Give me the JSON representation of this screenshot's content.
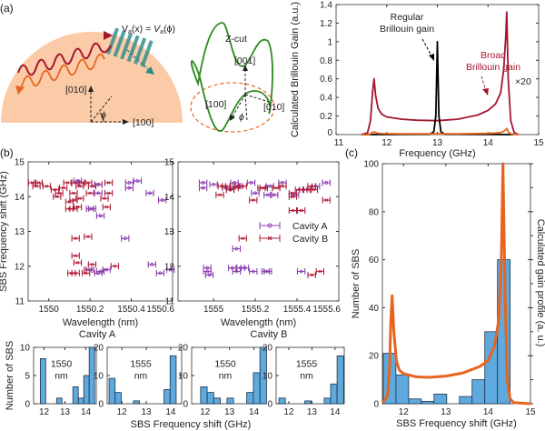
{
  "panel_labels": {
    "a": "(a)",
    "b": "(b)",
    "c": "(c)"
  },
  "diagram_halfdisk": {
    "equation_lhs_v": "V",
    "equation_lhs_sub": "a",
    "equation_lhs_arg": "(x) = ",
    "equation_rhs_v": "V",
    "equation_rhs_sub": "a",
    "equation_rhs_arg": "(ϕ)",
    "axis_y": "[010]",
    "axis_x": "[100]",
    "angle": "ϕ",
    "colors": {
      "disk": "#fbcba8",
      "pump_wave": "#a3162f",
      "stokes_wave": "#e8641e",
      "acoustic": "#2a8a8a"
    }
  },
  "diagram_zcut": {
    "title": "Z-cut",
    "axis_z": "[001]",
    "axis_x": "[100]",
    "axis_y": "[010]",
    "angle": "ϕ",
    "colors": {
      "surface": "#2e8b1e",
      "ellipse": "#e8641e"
    }
  },
  "chart_data": [
    {
      "id": "a-gain",
      "type": "line",
      "xlabel": "Frequency (GHz)",
      "ylabel": "Calculated Brillouin Gain (a.u.)",
      "xlim": [
        11,
        15
      ],
      "ylim": [
        0,
        1.4
      ],
      "xticks": [
        "11",
        "12",
        "13",
        "14",
        "15"
      ],
      "yticks": [
        "0",
        "0.2",
        "0.4",
        "0.6",
        "0.8",
        "1",
        "1.2",
        "1.4"
      ],
      "grid": false,
      "annotations": {
        "regular_1": "Regular",
        "regular_2": "Brillouin gain",
        "broad_1": "Broad",
        "broad_2": "Brillouin gain",
        "scale": "×20"
      },
      "series": [
        {
          "label": "broad",
          "color": "#a3162f",
          "x": [
            11.5,
            11.62,
            11.68,
            11.72,
            11.75,
            11.78,
            11.83,
            11.9,
            12.0,
            12.3,
            12.6,
            13.0,
            13.4,
            13.8,
            14.0,
            14.15,
            14.25,
            14.31,
            14.35,
            14.37,
            14.4,
            14.45,
            14.52,
            14.6
          ],
          "y": [
            0,
            0.02,
            0.15,
            0.45,
            0.6,
            0.42,
            0.28,
            0.22,
            0.19,
            0.165,
            0.155,
            0.15,
            0.165,
            0.21,
            0.26,
            0.33,
            0.45,
            0.7,
            1.05,
            1.32,
            0.6,
            0.15,
            0.02,
            0
          ]
        },
        {
          "label": "regular",
          "color": "#000000",
          "x": [
            11.5,
            12.85,
            12.93,
            12.97,
            12.99,
            13.0,
            13.01,
            13.03,
            13.07,
            13.15,
            14.5
          ],
          "y": [
            0,
            0.003,
            0.03,
            0.2,
            0.7,
            1.0,
            0.7,
            0.2,
            0.03,
            0.003,
            0
          ]
        },
        {
          "label": "broad-scaled",
          "color": "#e8641e",
          "scale": 0.05,
          "of": "broad"
        }
      ]
    },
    {
      "id": "b-left",
      "type": "scatter",
      "xlabel": "Wavelength (nm)",
      "ylabel": "SBS Frequency shift (GHz)",
      "xlim": [
        1549.9,
        1550.6
      ],
      "ylim": [
        11,
        15
      ],
      "xticks": [
        "1550",
        "1550.2",
        "1550.4",
        "1550.6"
      ],
      "ytick_values": [
        11,
        12,
        13,
        14,
        15
      ],
      "yticks": [
        "11",
        "12",
        "13",
        "14",
        "15"
      ],
      "series": [
        {
          "name": "Cavity B",
          "color": "#b0203a",
          "marker": "x",
          "points": [
            [
              1549.92,
              14.4
            ],
            [
              1549.94,
              14.3
            ],
            [
              1549.95,
              14.4
            ],
            [
              1549.99,
              14.3
            ],
            [
              1550.03,
              14.2
            ],
            [
              1550.04,
              14.0
            ],
            [
              1550.05,
              14.1
            ],
            [
              1550.07,
              14.25
            ],
            [
              1550.09,
              14.4
            ],
            [
              1550.1,
              13.85
            ],
            [
              1550.1,
              13.65
            ],
            [
              1550.12,
              14.1
            ],
            [
              1550.12,
              13.9
            ],
            [
              1550.12,
              13.65
            ],
            [
              1550.13,
              14.4
            ],
            [
              1550.13,
              12.3
            ],
            [
              1550.13,
              11.8
            ],
            [
              1550.11,
              11.8
            ],
            [
              1550.13,
              12.8
            ],
            [
              1550.14,
              12.1
            ],
            [
              1550.14,
              13.7
            ],
            [
              1550.15,
              13.95
            ],
            [
              1550.15,
              14.3
            ],
            [
              1550.16,
              14.4
            ],
            [
              1550.18,
              11.8
            ],
            [
              1550.19,
              11.9
            ],
            [
              1550.19,
              12.85
            ],
            [
              1550.19,
              14.4
            ],
            [
              1550.2,
              14.1
            ],
            [
              1550.21,
              12.05
            ],
            [
              1550.21,
              14.3
            ],
            [
              1550.27,
              13.95
            ],
            [
              1550.28,
              13.7
            ],
            [
              1550.29,
              14.4
            ],
            [
              1550.29,
              14.1
            ],
            [
              1550.32,
              12.0
            ],
            [
              1550.24,
              14.35
            ]
          ]
        },
        {
          "name": "Cavity A",
          "color": "#8b3fb0",
          "marker": "o",
          "points": [
            [
              1550.14,
              14.45
            ],
            [
              1550.2,
              13.65
            ],
            [
              1550.21,
              13.65
            ],
            [
              1550.24,
              14.35
            ],
            [
              1550.24,
              14.1
            ],
            [
              1550.25,
              13.45
            ],
            [
              1550.2,
              11.9
            ],
            [
              1550.24,
              11.8
            ],
            [
              1550.25,
              11.85
            ],
            [
              1550.28,
              11.9
            ],
            [
              1550.37,
              12.8
            ],
            [
              1550.39,
              14.4
            ],
            [
              1550.39,
              14.25
            ],
            [
              1550.43,
              14.45
            ],
            [
              1550.49,
              14.1
            ],
            [
              1550.5,
              12.05
            ],
            [
              1550.54,
              11.8
            ],
            [
              1550.55,
              13.9
            ],
            [
              1550.59,
              11.9
            ]
          ]
        }
      ]
    },
    {
      "id": "b-right",
      "type": "scatter",
      "xlabel": "Wavelength (nm)",
      "ylabel": "",
      "xlim": [
        1554.83,
        1555.6
      ],
      "ylim": [
        11,
        15
      ],
      "xticks": [
        "1555",
        "1555.2",
        "1555.4",
        "1555.6"
      ],
      "yticks": [
        "11",
        "12",
        "13",
        "14",
        "15"
      ],
      "legend": {
        "position": "center-right",
        "entries": [
          "Cavity A",
          "Cavity B"
        ]
      },
      "series": [
        {
          "name": "Cavity A",
          "color": "#8b3fb0",
          "marker": "o",
          "points": [
            [
              1554.95,
              14.4
            ],
            [
              1554.95,
              14.25
            ],
            [
              1554.97,
              11.95
            ],
            [
              1554.97,
              11.85
            ],
            [
              1554.98,
              11.75
            ],
            [
              1555.0,
              14.35
            ],
            [
              1555.06,
              14.25
            ],
            [
              1555.08,
              14.2
            ],
            [
              1555.1,
              14.4
            ],
            [
              1555.11,
              12.5
            ],
            [
              1555.11,
              14.3
            ],
            [
              1555.09,
              11.95
            ],
            [
              1555.11,
              11.85
            ],
            [
              1555.13,
              11.95
            ],
            [
              1555.15,
              11.95
            ],
            [
              1555.18,
              14.4
            ],
            [
              1555.2,
              14.1
            ],
            [
              1555.26,
              14.05
            ],
            [
              1555.27,
              14.3
            ],
            [
              1555.29,
              14.05
            ],
            [
              1555.19,
              11.85
            ],
            [
              1555.25,
              11.85
            ],
            [
              1555.26,
              11.85
            ],
            [
              1555.33,
              14.4
            ],
            [
              1555.39,
              14.05
            ],
            [
              1555.42,
              11.85
            ],
            [
              1555.49,
              14.3
            ],
            [
              1555.54,
              14.4
            ],
            [
              1555.43,
              14.2
            ]
          ]
        },
        {
          "name": "Cavity B",
          "color": "#b0203a",
          "marker": "x",
          "points": [
            [
              1555.03,
              14.05
            ],
            [
              1555.04,
              14.3
            ],
            [
              1555.06,
              14.3
            ],
            [
              1555.08,
              14.2
            ],
            [
              1555.1,
              14.25
            ],
            [
              1555.12,
              14.3
            ],
            [
              1555.14,
              14.3
            ],
            [
              1555.14,
              12.8
            ],
            [
              1555.19,
              13.9
            ],
            [
              1555.23,
              14.25
            ],
            [
              1555.24,
              14.25
            ],
            [
              1555.3,
              14.25
            ],
            [
              1555.33,
              14.3
            ],
            [
              1555.38,
              14.1
            ],
            [
              1555.38,
              14.0
            ],
            [
              1555.38,
              13.6
            ],
            [
              1555.42,
              13.6
            ],
            [
              1555.41,
              14.2
            ],
            [
              1555.45,
              14.2
            ],
            [
              1555.47,
              14.3
            ],
            [
              1555.48,
              14.2
            ],
            [
              1555.47,
              11.75
            ],
            [
              1555.51,
              11.85
            ],
            [
              1555.54,
              13.9
            ]
          ]
        }
      ]
    },
    {
      "id": "hist-a-1550",
      "type": "bar",
      "group_title": "Cavity A",
      "inner_1": "1550",
      "inner_2": "nm",
      "ylabel": "Number of SBS",
      "xlim": [
        11.5,
        14.5
      ],
      "ylim": [
        0,
        10
      ],
      "xticks": [
        "12",
        "13",
        "14"
      ],
      "yticks": [
        "0",
        "5",
        "10"
      ],
      "ytick_values": [
        0,
        5,
        10
      ],
      "bin_width": 0.26,
      "centers": [
        11.95,
        12.21,
        12.47,
        12.73,
        12.99,
        13.25,
        13.51,
        13.77,
        14.03,
        14.29
      ],
      "values": [
        8,
        0,
        0,
        1,
        0,
        0,
        3,
        1,
        5,
        10
      ]
    },
    {
      "id": "hist-a-1555",
      "type": "bar",
      "inner_1": "1555",
      "inner_2": "nm",
      "xlim": [
        11.4,
        14.45
      ],
      "ylim": [
        0,
        20
      ],
      "xticks": [
        "12",
        "13",
        "14"
      ],
      "yticks": [
        "0",
        "10",
        "20"
      ],
      "ytick_values": [
        0,
        10,
        20
      ],
      "bin_width": 0.25,
      "centers": [
        11.6,
        11.85,
        12.1,
        12.35,
        12.6,
        12.85,
        13.1,
        13.35,
        13.6,
        13.85,
        14.1
      ],
      "values": [
        9,
        4,
        0,
        0,
        1,
        0,
        0,
        0,
        0,
        5,
        17
      ]
    },
    {
      "id": "hist-b-1550",
      "type": "bar",
      "group_title": "Cavity B",
      "inner_1": "1550",
      "inner_2": "nm",
      "xlim": [
        11.45,
        14.5
      ],
      "ylim": [
        0,
        20
      ],
      "xticks": [
        "12",
        "13",
        "14"
      ],
      "yticks": [
        "0",
        "10",
        "20"
      ],
      "ytick_values": [
        0,
        10,
        20
      ],
      "bin_width": 0.27,
      "centers": [
        11.95,
        12.22,
        12.49,
        12.76,
        13.03,
        13.3,
        13.57,
        13.84,
        14.11,
        14.38
      ],
      "values": [
        6,
        4,
        2,
        0,
        2,
        0,
        0,
        4,
        11,
        21
      ]
    },
    {
      "id": "hist-b-1555",
      "type": "bar",
      "inner_1": "1555",
      "inner_2": "nm",
      "xlim": [
        11.45,
        14.4
      ],
      "ylim": [
        0,
        20
      ],
      "xticks": [
        "12",
        "13",
        "14"
      ],
      "yticks": [
        "0",
        "10",
        "20"
      ],
      "ytick_values": [
        0,
        10,
        20
      ],
      "bin_width": 0.28,
      "centers": [
        11.71,
        11.99,
        12.27,
        12.55,
        12.83,
        13.11,
        13.39,
        13.67,
        13.95,
        14.23
      ],
      "values": [
        2,
        0,
        0,
        0,
        1,
        0,
        0,
        2,
        7,
        17
      ]
    },
    {
      "id": "c-combined",
      "type": "bar",
      "xlabel": "SBS Frequency shift (GHz)",
      "ylabel": "Number of SBS",
      "ylabel_right": "Calculated gain profile (a. u.)",
      "xlim": [
        11.5,
        15
      ],
      "ylim": [
        0,
        100
      ],
      "xticks": [
        "12",
        "13",
        "14",
        "15"
      ],
      "yticks": [
        "0",
        "20",
        "40",
        "60",
        "80",
        "100"
      ],
      "ytick_values": [
        0,
        20,
        40,
        60,
        80,
        100
      ],
      "bin_width": 0.3,
      "centers": [
        11.67,
        11.97,
        12.27,
        12.57,
        12.87,
        13.17,
        13.47,
        13.77,
        14.07,
        14.37
      ],
      "values": [
        21,
        12,
        2,
        1,
        4,
        0,
        3,
        10,
        30,
        60
      ],
      "curve": {
        "color": "#e8641e",
        "x": [
          11.5,
          11.62,
          11.67,
          11.7,
          11.73,
          11.77,
          11.83,
          11.9,
          12.0,
          12.3,
          12.6,
          13.0,
          13.4,
          13.8,
          14.0,
          14.15,
          14.25,
          14.31,
          14.35,
          14.4,
          14.45,
          14.52,
          14.6,
          15.0
        ],
        "y": [
          0.5,
          3,
          15,
          35,
          45,
          30,
          18,
          14,
          12.5,
          11.2,
          11,
          11.5,
          12.8,
          15.5,
          18,
          24,
          35,
          60,
          100,
          45,
          10,
          2,
          0.5,
          0
        ]
      }
    }
  ],
  "bottom_xlabel": "SBS Frequency shift (GHz)",
  "bottom_ylabel": "Number of SBS",
  "colors": {
    "hist_fill": "#5ea9dd",
    "hist_edge": "#1e3448"
  }
}
